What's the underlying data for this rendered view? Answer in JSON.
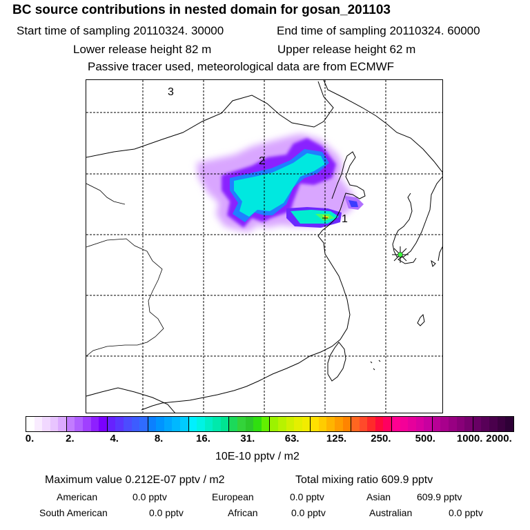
{
  "header": {
    "title": "BC  source contributions in nested domain for gosan_201103",
    "start_label": "Start time of sampling 20110324. 30000",
    "end_label": "End time of sampling 20110324. 60000",
    "lower_label": "Lower release height   82 m",
    "upper_label": "Upper release height   62 m",
    "info_line": "Passive tracer used, meteorological data are from ECMWF"
  },
  "map": {
    "labels": [
      "3",
      "2",
      "1"
    ],
    "receptor_marker": "star-icon",
    "colors": {
      "land_outline": "#000000",
      "grid": "#000000",
      "plume_low": "#cc66ff",
      "plume_mid": "#00ddcc",
      "plume_high": "#33ff99"
    }
  },
  "colorbar": {
    "colors": [
      "#ffffff",
      "#f9ecff",
      "#f1d8ff",
      "#e8c4ff",
      "#dcaaff",
      "#c27cff",
      "#b060ff",
      "#a040ff",
      "#8e20ff",
      "#7a00ff",
      "#6622ff",
      "#5a36ff",
      "#4c4cff",
      "#3d5cff",
      "#2f6cff",
      "#0b80ff",
      "#0094ff",
      "#00a6ff",
      "#00b8ff",
      "#00cbff",
      "#00f0ff",
      "#00f3e4",
      "#00eec6",
      "#00e9ac",
      "#00e492",
      "#1cd95a",
      "#33d33a",
      "#2cc82b",
      "#30df10",
      "#62f000",
      "#9cf200",
      "#b8f200",
      "#d0f000",
      "#e4ef00",
      "#f2ec00",
      "#ffe000",
      "#ffcc00",
      "#ffb400",
      "#ff9c00",
      "#ff8400",
      "#ff6620",
      "#ff4a2a",
      "#ff2a2a",
      "#ff0a3c",
      "#ff0060",
      "#ff0090",
      "#f40098",
      "#e6009c",
      "#d800a0",
      "#c800a0",
      "#b80096",
      "#a8008c",
      "#980082",
      "#880078",
      "#78006e",
      "#680064",
      "#580058",
      "#4a004c",
      "#3c0040",
      "#2e0036"
    ],
    "tick_labels": [
      "0.",
      "2.",
      "4.",
      "8.",
      "16.",
      "31.",
      "63.",
      "125.",
      "250.",
      "500.",
      "1000.",
      "2000."
    ],
    "unit_label": "10E-10 pptv / m2"
  },
  "stats": {
    "max_value": "Maximum value  0.212E-07 pptv / m2",
    "total_mixing": "Total mixing ratio      609.9 pptv",
    "regions": [
      {
        "name": "American",
        "value": "0.0 pptv"
      },
      {
        "name": "European",
        "value": "0.0 pptv"
      },
      {
        "name": "Asian",
        "value": "609.9 pptv"
      },
      {
        "name": "South American",
        "value": "0.0 pptv"
      },
      {
        "name": "African",
        "value": "0.0 pptv"
      },
      {
        "name": "Australian",
        "value": "0.0 pptv"
      }
    ]
  }
}
